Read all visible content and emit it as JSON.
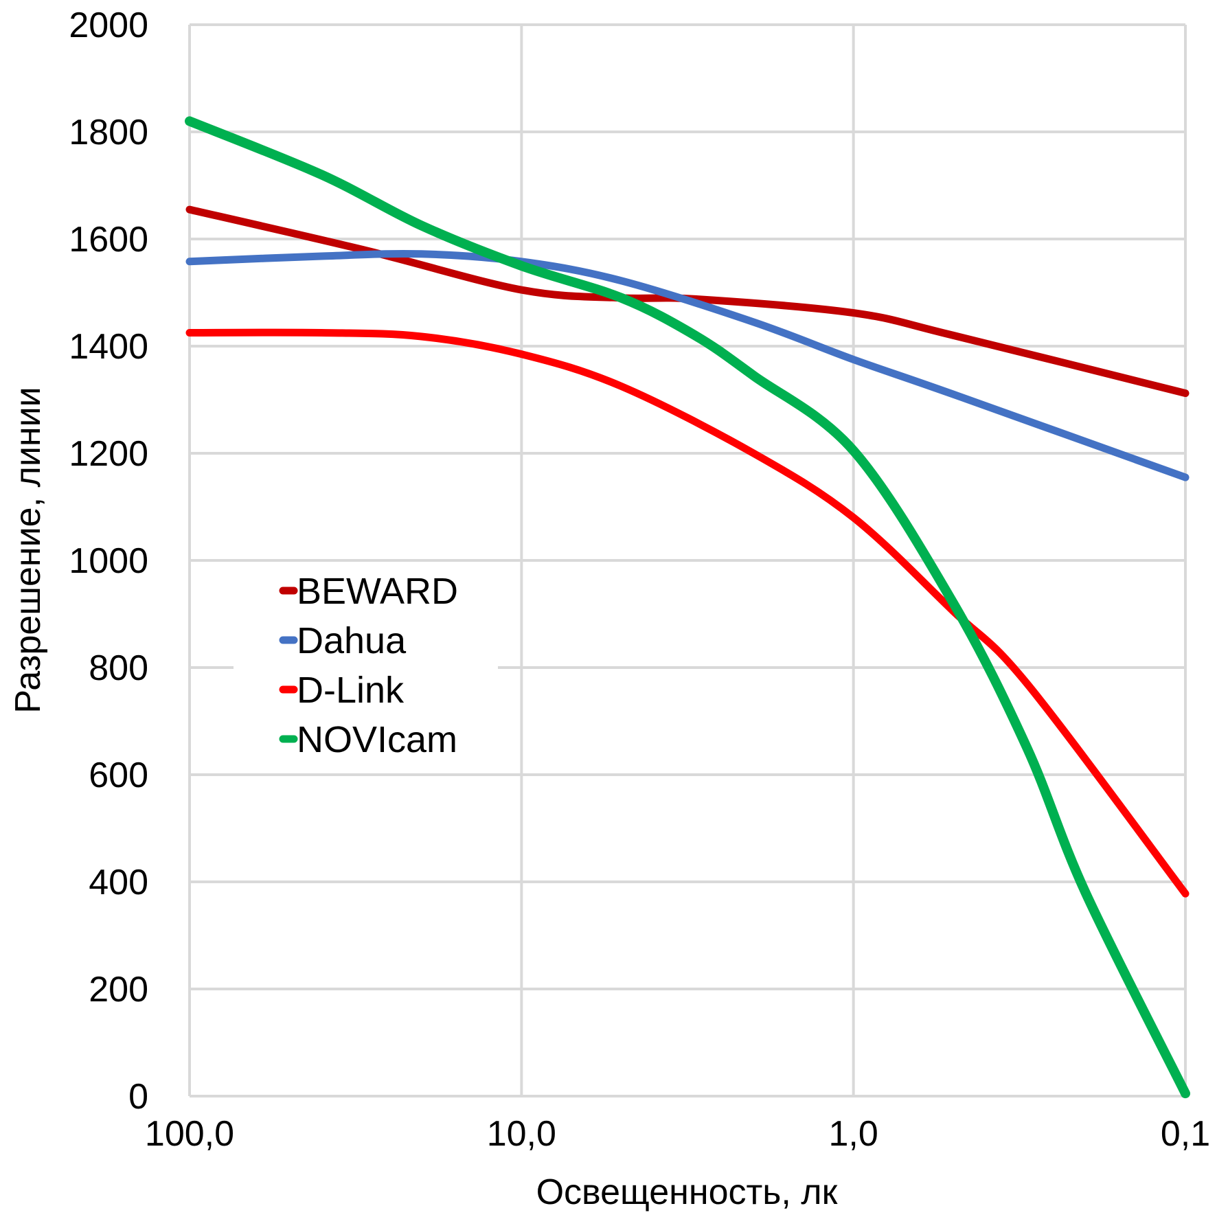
{
  "chart_data": {
    "type": "line",
    "xlabel": "Освещенность, лк",
    "ylabel": "Разрешение, линии",
    "x_scale": "log",
    "x_reversed": true,
    "x": [
      100.0,
      10.0,
      1.0,
      0.1
    ],
    "x_tick_labels": [
      "100,0",
      "10,0",
      "1,0",
      "0,1"
    ],
    "ylim": [
      0,
      2000
    ],
    "y_ticks": [
      0,
      200,
      400,
      600,
      800,
      1000,
      1200,
      1400,
      1600,
      1800,
      2000
    ],
    "y_tick_labels": [
      "0",
      "200",
      "400",
      "600",
      "800",
      "1000",
      "1200",
      "1400",
      "1600",
      "1800",
      "2000"
    ],
    "grid": true,
    "legend": "center-left",
    "series": [
      {
        "name": "BEWARD",
        "color": "#C00000",
        "points": [
          [
            100,
            1655
          ],
          [
            30,
            1580
          ],
          [
            10,
            1505
          ],
          [
            5,
            1490
          ],
          [
            3,
            1488
          ],
          [
            1,
            1462
          ],
          [
            0.5,
            1420
          ],
          [
            0.1,
            1312
          ]
        ]
      },
      {
        "name": "Dahua",
        "color": "#4472C4",
        "points": [
          [
            100,
            1558
          ],
          [
            40,
            1568
          ],
          [
            20,
            1572
          ],
          [
            10,
            1558
          ],
          [
            5,
            1522
          ],
          [
            2,
            1445
          ],
          [
            1,
            1375
          ],
          [
            0.5,
            1310
          ],
          [
            0.1,
            1155
          ]
        ]
      },
      {
        "name": "D-Link",
        "color": "#FF0000",
        "points": [
          [
            100,
            1425
          ],
          [
            40,
            1425
          ],
          [
            20,
            1418
          ],
          [
            10,
            1385
          ],
          [
            5,
            1325
          ],
          [
            2,
            1200
          ],
          [
            1,
            1080
          ],
          [
            0.5,
            905
          ],
          [
            0.3,
            770
          ],
          [
            0.1,
            378
          ]
        ]
      },
      {
        "name": "NOVIcam",
        "color": "#00B050",
        "points": [
          [
            100,
            1820
          ],
          [
            40,
            1720
          ],
          [
            20,
            1625
          ],
          [
            10,
            1550
          ],
          [
            5,
            1490
          ],
          [
            3,
            1420
          ],
          [
            2,
            1345
          ],
          [
            1,
            1205
          ],
          [
            0.5,
            920
          ],
          [
            0.3,
            650
          ],
          [
            0.2,
            380
          ],
          [
            0.1,
            5
          ]
        ]
      }
    ]
  }
}
